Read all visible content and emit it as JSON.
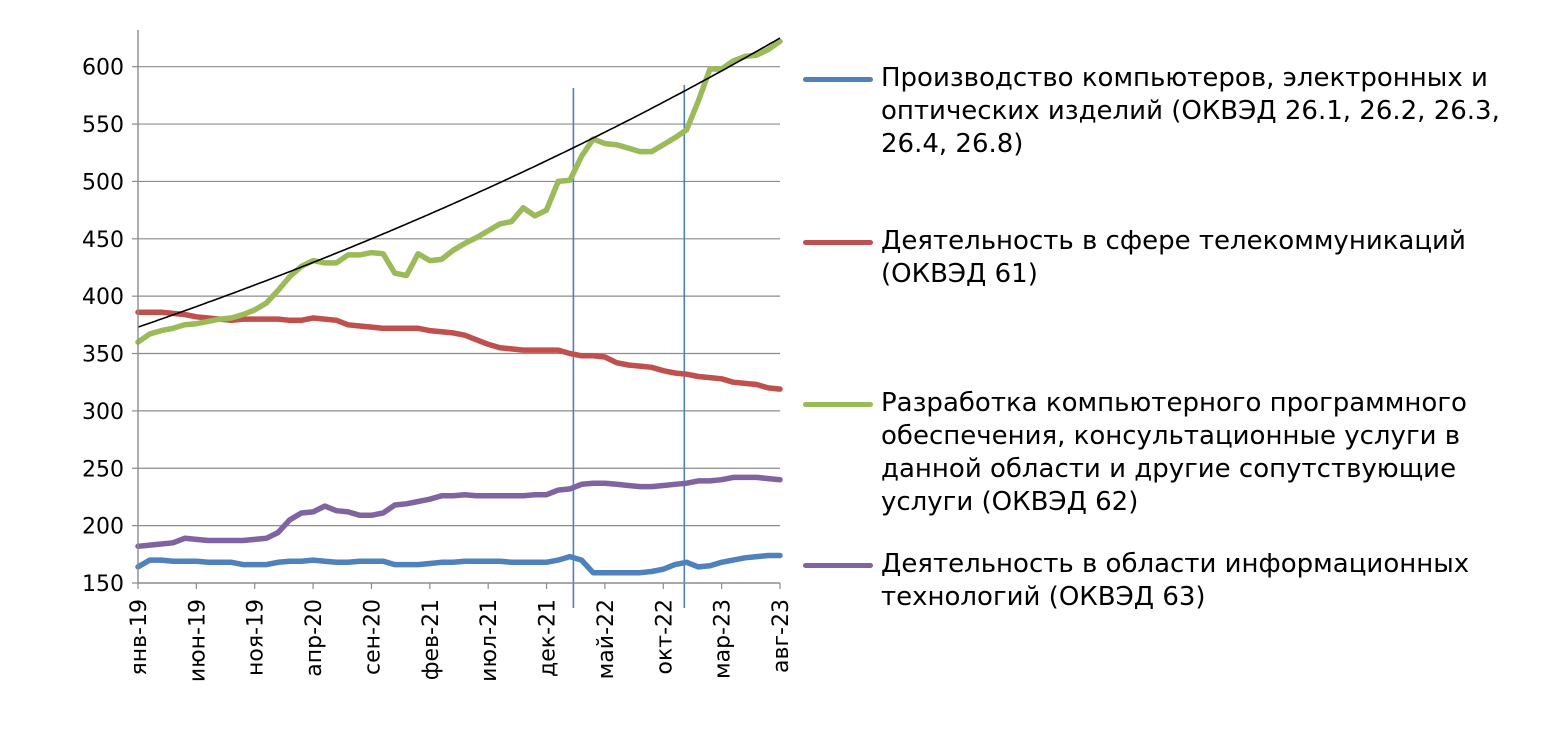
{
  "chart_data": {
    "type": "line",
    "ylim": [
      150,
      625
    ],
    "y_ticks": [
      150,
      200,
      250,
      300,
      350,
      400,
      450,
      500,
      550,
      600
    ],
    "x_tick_labels": [
      "янв-19",
      "июн-19",
      "ноя-19",
      "апр-20",
      "сен-20",
      "фев-21",
      "июл-21",
      "дек-21",
      "май-22",
      "окт-22",
      "мар-23",
      "авг-23"
    ],
    "x_tick_index": [
      0,
      5,
      10,
      15,
      20,
      25,
      30,
      35,
      40,
      45,
      50,
      55
    ],
    "n_points": 56,
    "vertical_lines_index": [
      37.3,
      46.8
    ],
    "series": [
      {
        "name": "Производство компьютеров, электронных и оптических изделий (ОКВЭД 26.1, 26.2, 26.3, 26.4, 26.8)",
        "color": "#4f81bd",
        "values": [
          164,
          170,
          170,
          169,
          169,
          169,
          168,
          168,
          168,
          166,
          166,
          166,
          168,
          169,
          169,
          170,
          169,
          168,
          168,
          169,
          169,
          169,
          166,
          166,
          166,
          167,
          168,
          168,
          169,
          169,
          169,
          169,
          168,
          168,
          168,
          168,
          170,
          173,
          170,
          159,
          159,
          159,
          159,
          159,
          160,
          162,
          166,
          168,
          164,
          165,
          168,
          170,
          172,
          173,
          174,
          174
        ]
      },
      {
        "name": "Деятельность в сфере телекоммуникаций (ОКВЭД 61)",
        "color": "#c0504d",
        "values": [
          386,
          386,
          386,
          385,
          384,
          382,
          381,
          380,
          379,
          380,
          380,
          380,
          380,
          379,
          379,
          381,
          380,
          379,
          375,
          374,
          373,
          372,
          372,
          372,
          372,
          370,
          369,
          368,
          366,
          362,
          358,
          355,
          354,
          353,
          353,
          353,
          353,
          350,
          348,
          348,
          347,
          342,
          340,
          339,
          338,
          335,
          333,
          332,
          330,
          329,
          328,
          325,
          324,
          323,
          320,
          319
        ]
      },
      {
        "name": "Разработка компьютерного программного обеспечения, консультационные услуги в данной области и другие сопутствующие услуги (ОКВЭД 62)",
        "color": "#9bbb59",
        "values": [
          360,
          367,
          370,
          372,
          375,
          376,
          378,
          380,
          381,
          384,
          388,
          394,
          405,
          417,
          426,
          431,
          429,
          429,
          436,
          436,
          438,
          437,
          420,
          418,
          437,
          431,
          432,
          440,
          446,
          451,
          457,
          463,
          465,
          477,
          470,
          475,
          500,
          501,
          522,
          537,
          533,
          532,
          529,
          526,
          526,
          532,
          538,
          545,
          570,
          598,
          598,
          605,
          609,
          610,
          615,
          622
        ]
      },
      {
        "name": "Деятельность в области информационных технологий (ОКВЭД 63)",
        "color": "#8064a2",
        "values": [
          182,
          183,
          184,
          185,
          189,
          188,
          187,
          187,
          187,
          187,
          188,
          189,
          194,
          205,
          211,
          212,
          217,
          213,
          212,
          209,
          209,
          211,
          218,
          219,
          221,
          223,
          226,
          226,
          227,
          226,
          226,
          226,
          226,
          226,
          227,
          227,
          231,
          232,
          236,
          237,
          237,
          236,
          235,
          234,
          234,
          235,
          236,
          237,
          239,
          239,
          240,
          242,
          242,
          242,
          241,
          240
        ]
      }
    ],
    "trendline": {
      "color": "#000000",
      "type": "exponential",
      "start_value": 373,
      "end_value": 625
    }
  }
}
